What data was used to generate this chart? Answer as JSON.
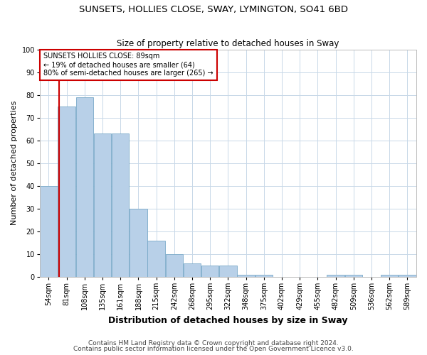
{
  "title": "SUNSETS, HOLLIES CLOSE, SWAY, LYMINGTON, SO41 6BD",
  "subtitle": "Size of property relative to detached houses in Sway",
  "xlabel": "Distribution of detached houses by size in Sway",
  "ylabel": "Number of detached properties",
  "categories": [
    "54sqm",
    "81sqm",
    "108sqm",
    "135sqm",
    "161sqm",
    "188sqm",
    "215sqm",
    "242sqm",
    "268sqm",
    "295sqm",
    "322sqm",
    "348sqm",
    "375sqm",
    "402sqm",
    "429sqm",
    "455sqm",
    "482sqm",
    "509sqm",
    "536sqm",
    "562sqm",
    "589sqm"
  ],
  "values": [
    40,
    75,
    79,
    63,
    63,
    30,
    16,
    10,
    6,
    5,
    5,
    1,
    1,
    0,
    0,
    0,
    1,
    1,
    0,
    1,
    1
  ],
  "bar_color": "#b8d0e8",
  "bar_edge_color": "#7aaac8",
  "vline_color": "#cc0000",
  "vline_pos": 0.575,
  "annotation_title": "SUNSETS HOLLIES CLOSE: 89sqm",
  "annotation_line2": "← 19% of detached houses are smaller (64)",
  "annotation_line3": "80% of semi-detached houses are larger (265) →",
  "annotation_box_color": "#cc0000",
  "ylim": [
    0,
    100
  ],
  "yticks": [
    0,
    10,
    20,
    30,
    40,
    50,
    60,
    70,
    80,
    90,
    100
  ],
  "footer1": "Contains HM Land Registry data © Crown copyright and database right 2024.",
  "footer2": "Contains public sector information licensed under the Open Government Licence v3.0.",
  "background_color": "#ffffff",
  "grid_color": "#c8d8e8",
  "title_fontsize": 9.5,
  "subtitle_fontsize": 8.5,
  "ylabel_fontsize": 8,
  "xlabel_fontsize": 9,
  "tick_fontsize": 7,
  "ann_fontsize": 7,
  "footer_fontsize": 6.5
}
